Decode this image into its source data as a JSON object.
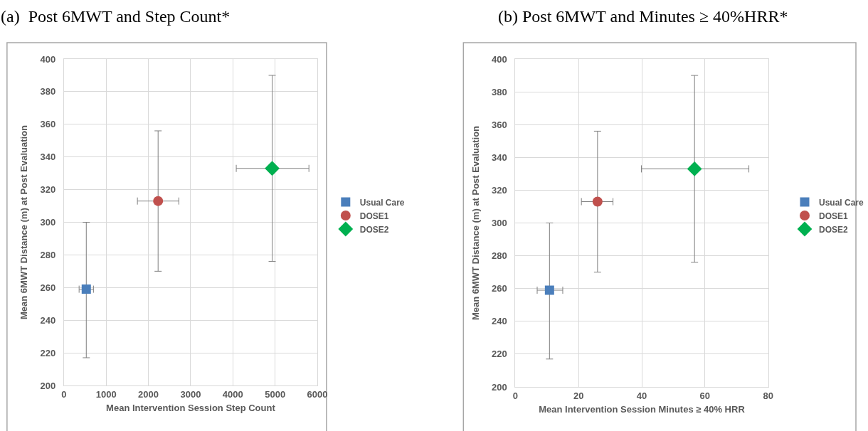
{
  "chart_data": [
    {
      "type": "scatter",
      "title": "(a)  Post 6MWT and Step Count*",
      "xlabel": "Mean Intervention Session Step Count",
      "ylabel": "Mean 6MWT Distance (m) at Post Evaluation",
      "xlim": [
        0,
        6000
      ],
      "xticks": [
        0,
        1000,
        2000,
        3000,
        4000,
        5000,
        6000
      ],
      "ylim": [
        200,
        400
      ],
      "yticks": [
        200,
        220,
        240,
        260,
        280,
        300,
        320,
        340,
        360,
        380,
        400
      ],
      "grid": true,
      "legend": "right",
      "series": [
        {
          "name": "Usual Care",
          "color": "#4a7ebb",
          "marker": "square",
          "x": [
            530
          ],
          "values": [
            259
          ],
          "errors": [
            [
              217,
              300
            ]
          ],
          "xerrors": [
            [
              360,
              700
            ]
          ]
        },
        {
          "name": "DOSE1",
          "color": "#c0504d",
          "marker": "circle",
          "x": [
            2230
          ],
          "values": [
            313
          ],
          "errors": [
            [
              270,
              356
            ]
          ],
          "xerrors": [
            [
              1740,
              2720
            ]
          ]
        },
        {
          "name": "DOSE2",
          "color": "#00b050",
          "marker": "diamond",
          "x": [
            4930
          ],
          "values": [
            333
          ],
          "errors": [
            [
              276,
              390
            ]
          ],
          "xerrors": [
            [
              4080,
              5800
            ]
          ]
        }
      ]
    },
    {
      "type": "scatter",
      "title": "(b) Post 6MWT and Minutes ≥ 40%HRR*",
      "xlabel": "Mean Intervention Session Minutes ≥ 40% HRR",
      "ylabel": "Mean 6MWT Distance (m) at Post Evaluation",
      "xlim": [
        0,
        80
      ],
      "xticks": [
        0,
        20,
        40,
        60,
        80
      ],
      "ylim": [
        200,
        400
      ],
      "yticks": [
        200,
        220,
        240,
        260,
        280,
        300,
        320,
        340,
        360,
        380,
        400
      ],
      "grid": true,
      "legend": "right",
      "series": [
        {
          "name": "Usual Care",
          "color": "#4a7ebb",
          "marker": "square",
          "x": [
            10.8
          ],
          "values": [
            259
          ],
          "errors": [
            [
              217,
              300
            ]
          ],
          "xerrors": [
            [
              6.9,
              15
            ]
          ]
        },
        {
          "name": "DOSE1",
          "color": "#c0504d",
          "marker": "circle",
          "x": [
            26
          ],
          "values": [
            313
          ],
          "errors": [
            [
              270,
              356
            ]
          ],
          "xerrors": [
            [
              20.9,
              30.9
            ]
          ]
        },
        {
          "name": "DOSE2",
          "color": "#00b050",
          "marker": "diamond",
          "x": [
            56.7
          ],
          "values": [
            333
          ],
          "errors": [
            [
              276,
              390
            ]
          ],
          "xerrors": [
            [
              39.9,
              73.9
            ]
          ]
        }
      ]
    }
  ]
}
